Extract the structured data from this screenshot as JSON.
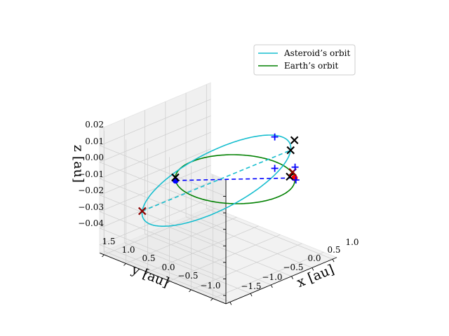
{
  "chart_data": {
    "type": "line3d",
    "xlabel": "x [au]",
    "ylabel": "y [au]",
    "zlabel": "z [au]",
    "xlim": [
      -1.6,
      1.1
    ],
    "ylim": [
      -1.3,
      1.6
    ],
    "zlim": [
      -0.045,
      0.03
    ],
    "x_ticks": [
      "−1.5",
      "−1.0",
      "−0.5",
      "0.0",
      "0.5",
      "1.0"
    ],
    "y_ticks": [
      "1.5",
      "1.0",
      "0.5",
      "0.0",
      "−0.5",
      "−1.0"
    ],
    "z_ticks": [
      "0.02",
      "0.01",
      "0.00",
      "−0.01",
      "−0.02",
      "−0.03",
      "−0.04"
    ],
    "grid": true,
    "legend_position": "upper right",
    "series": [
      {
        "name": "Asteroid’s orbit",
        "color": "#17becf",
        "kind": "orbit",
        "a": 1.46,
        "e": 0.55,
        "inclination_deg": 1.8
      },
      {
        "name": "Earth’s orbit",
        "color": "#008000",
        "kind": "orbit",
        "a": 1.0,
        "e": 0.0,
        "inclination_deg": 0.0
      }
    ],
    "markers": [
      {
        "symbol": "dot",
        "color": "#0000ff",
        "x": -0.75,
        "y": 0.66,
        "z": 0.0
      },
      {
        "symbol": "dot",
        "color": "#ff0000",
        "x": 0.75,
        "y": -0.66,
        "z": 0.0
      },
      {
        "symbol": "x",
        "color": "#000000",
        "x": -0.66,
        "y": 0.75,
        "z": 0.0
      },
      {
        "symbol": "x",
        "color": "#000000",
        "x": 0.73,
        "y": -0.57,
        "z": 0.0
      },
      {
        "symbol": "x",
        "color": "#000000",
        "x": 0.74,
        "y": -0.58,
        "z": 0.016
      },
      {
        "symbol": "x",
        "color": "#000000",
        "x": 0.79,
        "y": -0.62,
        "z": 0.022
      },
      {
        "symbol": "x",
        "color": "#8b0000",
        "x": -0.83,
        "y": 1.35,
        "z": -0.025
      },
      {
        "symbol": "x",
        "color": "#8b0000",
        "x": 0.8,
        "y": -0.57,
        "z": 0.002
      },
      {
        "symbol": "plus",
        "color": "#0000ff",
        "x": 0.65,
        "y": -0.3,
        "z": 0.022
      },
      {
        "symbol": "plus",
        "color": "#0000ff",
        "x": 0.65,
        "y": -0.3,
        "z": 0.003
      },
      {
        "symbol": "plus",
        "color": "#0000ff",
        "x": 0.88,
        "y": -0.55,
        "z": 0.004
      },
      {
        "symbol": "plus",
        "color": "#0000ff",
        "x": 0.9,
        "y": -0.55,
        "z": -0.004
      }
    ],
    "connectors": [
      {
        "color": "#0000ff",
        "style": "dashed",
        "from": 0,
        "to": 1
      },
      {
        "color": "#17becf",
        "style": "dashed",
        "from": 6,
        "to": 4
      }
    ]
  }
}
